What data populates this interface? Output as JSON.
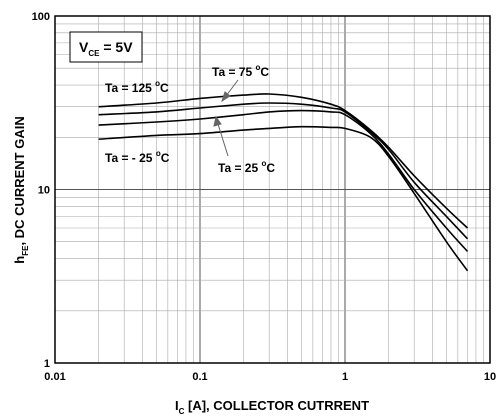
{
  "chart_data": {
    "type": "line",
    "xscale": "log",
    "yscale": "log",
    "xlim": [
      0.01,
      10
    ],
    "ylim": [
      1,
      100
    ],
    "grid": true,
    "x_ticks": [
      "0.01",
      "0.1",
      "1",
      "10"
    ],
    "y_ticks": [
      "1",
      "10",
      "100"
    ],
    "xlabel": {
      "main": "I",
      "sub": "C",
      "rest": " [A], COLLECTOR CUTRRENT"
    },
    "ylabel": {
      "main": "h",
      "sub": "FE",
      "rest": ", DC CURRENT GAIN"
    },
    "condition": {
      "main": "V",
      "sub": "CE",
      "rest": " = 5V"
    },
    "series": [
      {
        "name": "Ta = 125 °C",
        "x": [
          0.02,
          0.05,
          0.1,
          0.2,
          0.3,
          0.5,
          0.8,
          1.0,
          1.5,
          2.0,
          3.0,
          5.0,
          7.0
        ],
        "y": [
          30,
          31.5,
          33.5,
          35,
          35.5,
          34,
          31,
          28.5,
          22,
          17.5,
          12,
          7.8,
          6.0
        ]
      },
      {
        "name": "Ta = 75 °C",
        "x": [
          0.02,
          0.05,
          0.1,
          0.2,
          0.3,
          0.5,
          0.8,
          1.0,
          1.5,
          2.0,
          3.0,
          5.0,
          7.0
        ],
        "y": [
          27,
          28,
          29.5,
          31,
          31.5,
          31,
          29.5,
          28,
          21.5,
          17,
          11,
          7.0,
          5.2
        ]
      },
      {
        "name": "Ta = 25 °C",
        "x": [
          0.02,
          0.05,
          0.1,
          0.2,
          0.3,
          0.5,
          0.8,
          1.0,
          1.5,
          2.0,
          3.0,
          5.0,
          7.0
        ],
        "y": [
          23.5,
          24.5,
          25.5,
          27,
          28,
          28.5,
          28,
          27,
          21,
          16,
          10,
          6.0,
          4.4
        ]
      },
      {
        "name": "Ta = - 25 °C",
        "x": [
          0.02,
          0.05,
          0.1,
          0.2,
          0.3,
          0.5,
          0.8,
          1.0,
          1.5,
          2.0,
          3.0,
          5.0,
          7.0
        ],
        "y": [
          19.5,
          20.5,
          21,
          22,
          22.5,
          23,
          22.8,
          22.5,
          20,
          15.5,
          9.5,
          5.0,
          3.4
        ]
      }
    ],
    "annotations": [
      {
        "main": "Ta = 125 ",
        "sup": "o",
        "rest": "C"
      },
      {
        "main": "Ta = 75 ",
        "sup": "o",
        "rest": "C"
      },
      {
        "main": "Ta = 25 ",
        "sup": "o",
        "rest": "C"
      },
      {
        "main": "Ta = - 25 ",
        "sup": "o",
        "rest": "C"
      }
    ]
  }
}
